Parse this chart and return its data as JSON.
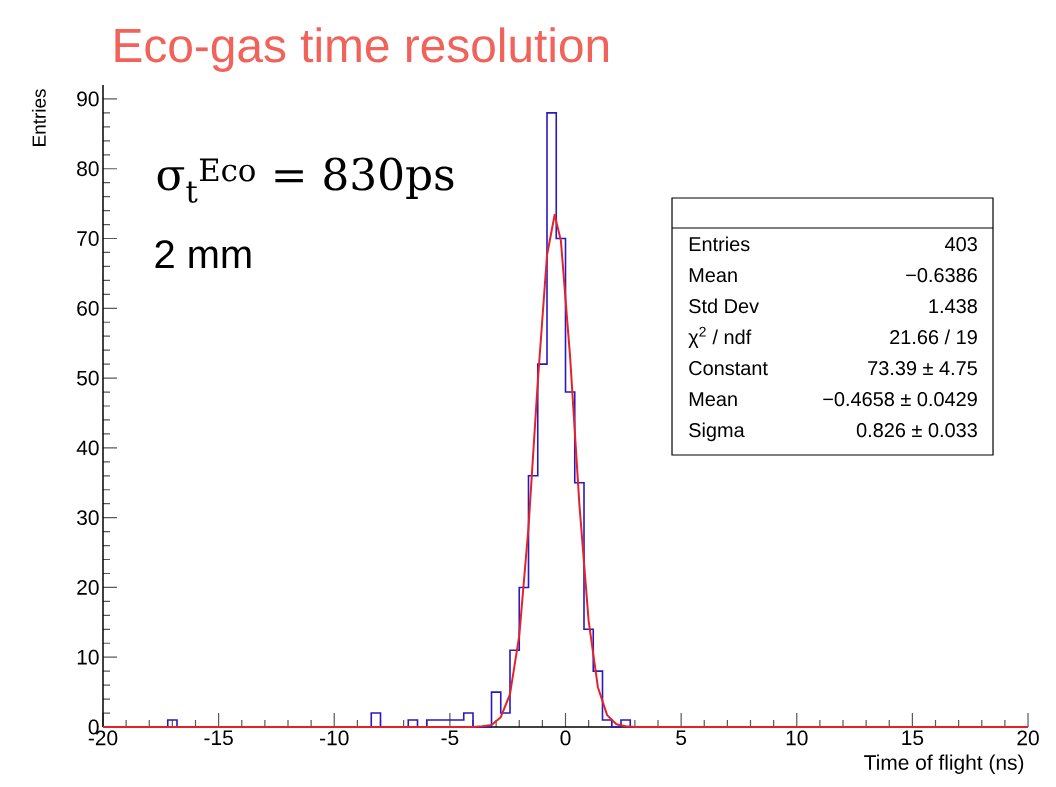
{
  "chart_data": {
    "type": "histogram",
    "title": "Eco-gas time resolution",
    "xlabel": "Time of flight (ns)",
    "ylabel": "Entries",
    "xlim": [
      -20,
      20
    ],
    "ylim": [
      0,
      92
    ],
    "xticks": [
      -20,
      -15,
      -10,
      -5,
      0,
      5,
      10,
      15,
      20
    ],
    "yticks": [
      0,
      10,
      20,
      30,
      40,
      50,
      60,
      70,
      80,
      90
    ],
    "series": [
      {
        "type": "histogram",
        "color": "#2a18c0",
        "bins": [
          -20,
          -19.6,
          -19.2,
          -18.8,
          -18.4,
          -18,
          -17.6,
          -17.2,
          -16.8,
          -16.4,
          -16,
          -15.6,
          -15.2,
          -14.8,
          -14.4,
          -14,
          -13.6,
          -13.2,
          -12.8,
          -12.4,
          -12,
          -11.6,
          -11.2,
          -10.8,
          -10.4,
          -10,
          -9.6,
          -9.2,
          -8.8,
          -8.4,
          -8,
          -7.6,
          -7.2,
          -6.8,
          -6.4,
          -6,
          -5.6,
          -5.2,
          -4.8,
          -4.4,
          -4,
          -3.6,
          -3.2,
          -2.8,
          -2.4,
          -2,
          -1.6,
          -1.2,
          -0.8,
          -0.4,
          0,
          0.4,
          0.8,
          1.2,
          1.6,
          2,
          2.4,
          2.8,
          3.2,
          3.6,
          4,
          4.4,
          4.8,
          5.2,
          5.6,
          6,
          6.4,
          6.8,
          7.2,
          7.6,
          8,
          8.4,
          8.8,
          9.2,
          9.6,
          10,
          10.4,
          10.8,
          11.2,
          11.6,
          12,
          12.4,
          12.8,
          13.2,
          13.6,
          14,
          14.4,
          14.8,
          15.2,
          15.6,
          16,
          16.4,
          16.8,
          17.2,
          17.6,
          18,
          18.4,
          18.8,
          19.2,
          19.6,
          20
        ],
        "values": [
          0,
          0,
          0,
          0,
          0,
          0,
          0,
          1,
          0,
          0,
          0,
          0,
          0,
          0,
          0,
          0,
          0,
          0,
          0,
          0,
          0,
          0,
          0,
          0,
          0,
          0,
          0,
          0,
          0,
          2,
          0,
          0,
          0,
          1,
          0,
          1,
          1,
          1,
          1,
          2,
          0,
          0,
          5,
          2,
          11,
          20,
          36,
          52,
          88,
          70,
          48,
          35,
          14,
          8,
          1,
          0,
          1,
          0,
          0,
          0,
          0,
          0,
          0,
          0,
          0,
          0,
          0,
          0,
          0,
          0,
          0,
          0,
          0,
          0,
          0,
          0,
          0,
          0,
          0,
          0,
          0,
          0,
          0,
          0,
          0,
          0,
          0,
          0,
          0,
          0,
          0,
          0,
          0,
          0,
          0,
          0,
          0,
          0,
          0,
          0
        ]
      },
      {
        "type": "line",
        "color": "#e3222c",
        "x": [
          -20,
          -4,
          -3.6,
          -3.2,
          -2.8,
          -2.4,
          -2.0,
          -1.6,
          -1.2,
          -0.8,
          -0.47,
          -0.2,
          0.2,
          0.6,
          1.0,
          1.4,
          1.8,
          2.2,
          2.6,
          3.0,
          20
        ],
        "values": [
          0,
          0,
          0.1,
          0.3,
          1.4,
          4.7,
          13.1,
          28.6,
          49.4,
          67.6,
          73.4,
          69.7,
          53,
          31.9,
          15.2,
          5.7,
          1.7,
          0.4,
          0.1,
          0,
          0
        ]
      }
    ],
    "annotations": [
      "σ$_{t}$$^{Eco}$ = 830ps",
      "2 mm",
      "Entries",
      "403",
      "Mean",
      "−0.6386",
      "Std Dev",
      "1.438",
      "χ$^{2}$ / ndf",
      "21.66 / 19",
      "Constant",
      "73.39 ± 4.75",
      "Mean",
      "−0.4658 ± 0.0429",
      "Sigma",
      "0.826 ± 0.033"
    ]
  }
}
